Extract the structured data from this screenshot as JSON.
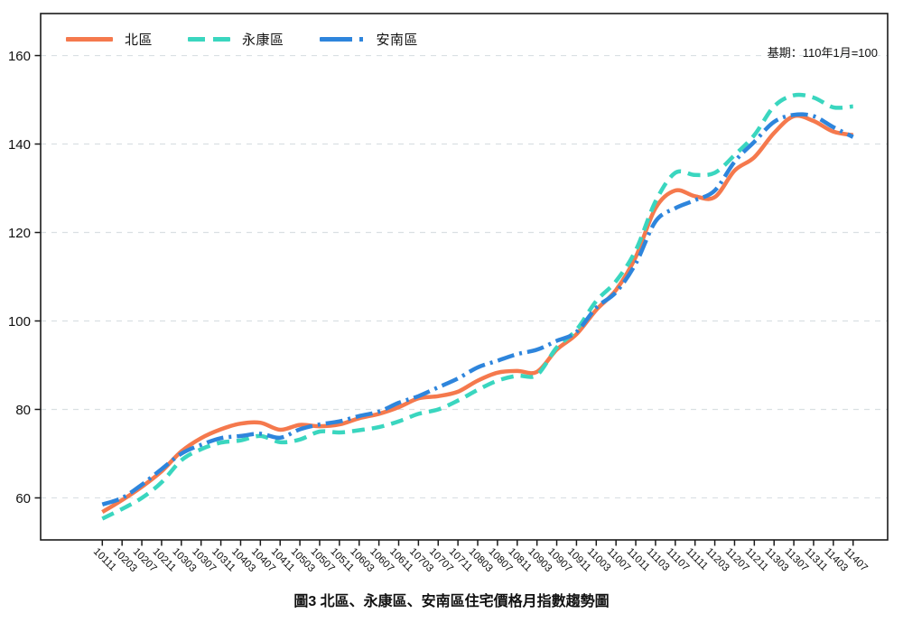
{
  "title": "圖3 北區、永康區、安南區住宅價格月指數趨勢圖",
  "note": "基期：110年1月=100",
  "colors": {
    "north": "#F5794D",
    "yongkang": "#3AD6BF",
    "annan": "#2E85DC",
    "grid": "#DAE0E3",
    "axis": "#1A1A1A",
    "tick_text": "#111111"
  },
  "chart_data": {
    "type": "line",
    "title": "圖3 北區、永康區、安南區住宅價格月指數趨勢圖",
    "annotation": "基期：110年1月=100",
    "xlabel": "",
    "ylabel": "",
    "x": [
      "10111",
      "10203",
      "10207",
      "10211",
      "10303",
      "10307",
      "10311",
      "10403",
      "10407",
      "10411",
      "10503",
      "10507",
      "10511",
      "10603",
      "10607",
      "10611",
      "10703",
      "10707",
      "10711",
      "10803",
      "10807",
      "10811",
      "10903",
      "10907",
      "10911",
      "11003",
      "11007",
      "11011",
      "11103",
      "11107",
      "11111",
      "11203",
      "11207",
      "11211",
      "11303",
      "11307",
      "11311",
      "11403",
      "11407"
    ],
    "y_ticks": [
      60,
      80,
      100,
      120,
      140,
      160
    ],
    "ylim": [
      50.5,
      169.5
    ],
    "grid": "horizontal-dashed",
    "legend_position": "top-left-inside",
    "series": [
      {
        "name": "北區",
        "color": "#F5794D",
        "style": "solid",
        "values": [
          56.8,
          59.5,
          62.5,
          66.0,
          70.5,
          73.5,
          75.5,
          76.8,
          77.0,
          75.4,
          76.5,
          76.2,
          76.6,
          78.0,
          79.0,
          80.5,
          82.5,
          83.0,
          84.0,
          86.5,
          88.3,
          88.7,
          88.5,
          93.5,
          97.0,
          102.5,
          107.0,
          114.5,
          125.5,
          129.5,
          128.2,
          128.0,
          134.0,
          137.0,
          142.5,
          146.3,
          145.2,
          142.8,
          142.0
        ]
      },
      {
        "name": "永康區",
        "color": "#3AD6BF",
        "style": "dashed",
        "values": [
          55.3,
          57.5,
          60.0,
          63.5,
          68.5,
          71.0,
          72.5,
          73.0,
          74.0,
          72.6,
          73.2,
          75.0,
          74.8,
          75.3,
          76.0,
          77.3,
          79.0,
          80.0,
          82.0,
          84.4,
          86.5,
          87.6,
          87.8,
          94.0,
          98.0,
          104.5,
          109.0,
          116.0,
          127.0,
          133.5,
          133.0,
          133.5,
          137.5,
          142.0,
          148.5,
          151.0,
          150.5,
          148.3,
          148.5
        ]
      },
      {
        "name": "安南區",
        "color": "#2E85DC",
        "style": "dash-dot",
        "values": [
          58.5,
          60.0,
          63.0,
          66.5,
          70.0,
          72.0,
          73.5,
          74.0,
          74.5,
          73.6,
          75.5,
          76.6,
          77.3,
          78.5,
          79.5,
          81.5,
          83.0,
          85.0,
          87.0,
          89.5,
          91.0,
          92.5,
          93.5,
          95.5,
          97.5,
          103.0,
          106.5,
          113.0,
          122.5,
          125.5,
          127.3,
          129.5,
          136.0,
          140.5,
          145.0,
          146.6,
          146.3,
          143.8,
          141.6
        ]
      }
    ]
  }
}
